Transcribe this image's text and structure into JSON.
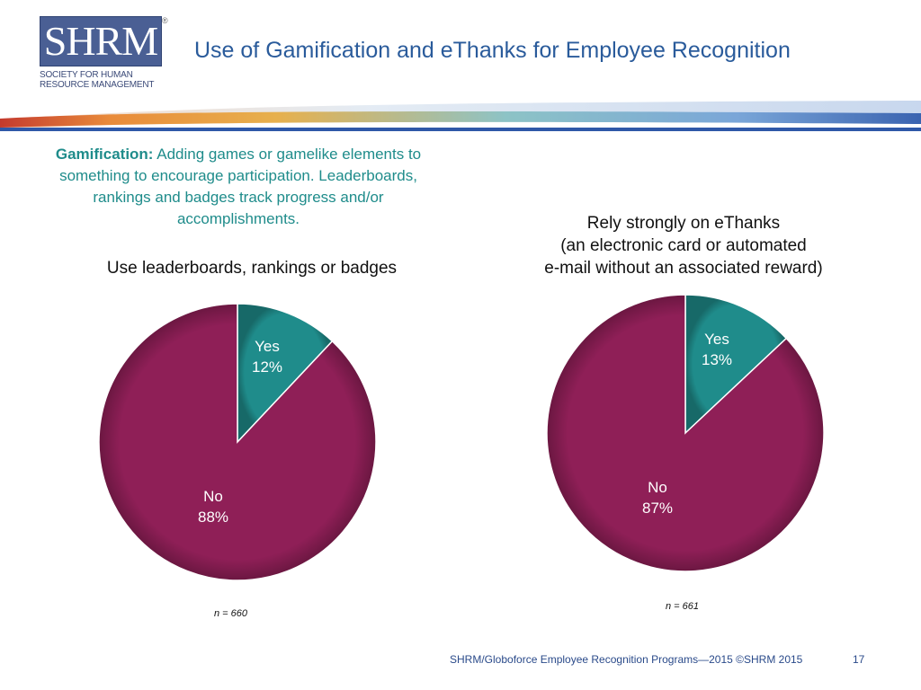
{
  "header": {
    "logo": {
      "letters": "SHRM",
      "reg_mark": "®",
      "line1": "SOCIETY FOR HUMAN",
      "line2": "RESOURCE MANAGEMENT"
    },
    "title": "Use of Gamification and eThanks for Employee Recognition"
  },
  "definition": {
    "term": "Gamification:",
    "text": " Adding games or gamelike elements to something to encourage participation. Leaderboards, rankings and badges track progress and/or accomplishments."
  },
  "colors": {
    "no": "#8f1f57",
    "yes": "#1f8c8b",
    "title": "#2a5b9b"
  },
  "chart_data": [
    {
      "type": "pie",
      "title": "Use leaderboards, rankings or badges",
      "slices": [
        {
          "label": "Yes",
          "value": 12,
          "display": "12%"
        },
        {
          "label": "No",
          "value": 88,
          "display": "88%"
        }
      ],
      "n": "n = 660"
    },
    {
      "type": "pie",
      "title_lines": [
        "Rely strongly on eThanks",
        "(an electronic card or automated",
        "e-mail without an associated reward)"
      ],
      "slices": [
        {
          "label": "Yes",
          "value": 13,
          "display": "13%"
        },
        {
          "label": "No",
          "value": 87,
          "display": "87%"
        }
      ],
      "n": "n = 661"
    }
  ],
  "footer": {
    "source": "SHRM/Globoforce Employee Recognition Programs—2015 ©SHRM 2015",
    "page": "17"
  }
}
